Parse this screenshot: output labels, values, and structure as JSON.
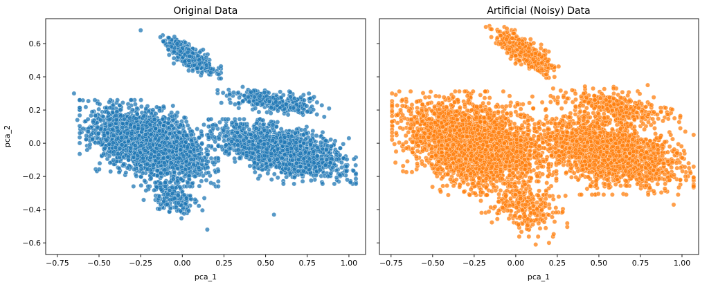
{
  "chart_data": [
    {
      "type": "scatter",
      "title": "Original Data",
      "xlabel": "pca_1",
      "ylabel": "pca_2",
      "xlim": [
        -0.82,
        1.1
      ],
      "ylim": [
        -0.67,
        0.75
      ],
      "xticks": [
        "−0.75",
        "−0.50",
        "−0.25",
        "0.00",
        "0.25",
        "0.50",
        "0.75",
        "1.00"
      ],
      "xtick_values": [
        -0.75,
        -0.5,
        -0.25,
        0.0,
        0.25,
        0.5,
        0.75,
        1.0
      ],
      "yticks": [
        "−0.6",
        "−0.4",
        "−0.2",
        "0.0",
        "0.2",
        "0.4",
        "0.6"
      ],
      "ytick_values": [
        -0.6,
        -0.4,
        -0.2,
        0.0,
        0.2,
        0.4,
        0.6
      ],
      "color": "#1f77b4",
      "clusters": [
        {
          "center": [
            -0.2,
            0.0
          ],
          "spread": [
            0.16,
            0.1
          ],
          "corr": -0.45,
          "count": 2600
        },
        {
          "center": [
            0.6,
            -0.05
          ],
          "spread": [
            0.17,
            0.075
          ],
          "corr": -0.55,
          "count": 1800
        },
        {
          "center": [
            0.05,
            0.52
          ],
          "spread": [
            0.07,
            0.05
          ],
          "corr": -0.8,
          "count": 420
        },
        {
          "center": [
            0.55,
            0.25
          ],
          "spread": [
            0.13,
            0.035
          ],
          "corr": -0.5,
          "count": 320
        },
        {
          "center": [
            -0.05,
            -0.33
          ],
          "spread": [
            0.07,
            0.05
          ],
          "corr": -0.2,
          "count": 180
        }
      ],
      "outliers": [
        [
          -0.65,
          0.3
        ],
        [
          -0.63,
          0.14
        ],
        [
          0.15,
          -0.52
        ],
        [
          0.55,
          -0.43
        ],
        [
          1.0,
          0.03
        ],
        [
          0.99,
          -0.22
        ],
        [
          -0.25,
          0.68
        ]
      ]
    },
    {
      "type": "scatter",
      "title": "Artificial (Noisy) Data",
      "xlabel": "pca_1",
      "ylabel": "",
      "xlim": [
        -0.82,
        1.1
      ],
      "ylim": [
        -0.67,
        0.75
      ],
      "xticks": [
        "−0.75",
        "−0.50",
        "−0.25",
        "0.00",
        "0.25",
        "0.50",
        "0.75",
        "1.00"
      ],
      "xtick_values": [
        -0.75,
        -0.5,
        -0.25,
        0.0,
        0.25,
        0.5,
        0.75,
        1.0
      ],
      "ytick_values": [
        -0.6,
        -0.4,
        -0.2,
        0.0,
        0.2,
        0.4,
        0.6
      ],
      "color": "#ff7f0e",
      "clusters": [
        {
          "center": [
            -0.25,
            0.0
          ],
          "spread": [
            0.19,
            0.12
          ],
          "corr": -0.3,
          "count": 2800
        },
        {
          "center": [
            0.55,
            -0.05
          ],
          "spread": [
            0.2,
            0.1
          ],
          "corr": -0.4,
          "count": 2000
        },
        {
          "center": [
            0.05,
            0.55
          ],
          "spread": [
            0.08,
            0.06
          ],
          "corr": -0.75,
          "count": 480
        },
        {
          "center": [
            0.6,
            0.22
          ],
          "spread": [
            0.15,
            0.05
          ],
          "corr": -0.4,
          "count": 380
        },
        {
          "center": [
            0.05,
            -0.38
          ],
          "spread": [
            0.1,
            0.07
          ],
          "corr": -0.2,
          "count": 260
        }
      ],
      "outliers": [
        [
          -0.72,
          -0.05
        ],
        [
          -0.68,
          0.17
        ],
        [
          0.12,
          -0.61
        ],
        [
          0.2,
          -0.6
        ],
        [
          1.02,
          0.07
        ],
        [
          0.97,
          -0.15
        ],
        [
          0.95,
          -0.37
        ],
        [
          -0.18,
          0.7
        ]
      ]
    }
  ]
}
